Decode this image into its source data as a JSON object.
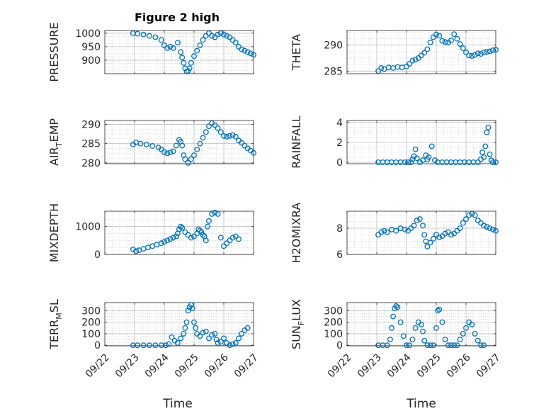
{
  "figure": {
    "title": "Figure 2 high",
    "xlabel": "Time"
  },
  "colors": {
    "marker": "#0072BD",
    "axes": "#262626",
    "grid": "#c8c8c8"
  },
  "chart_data": [
    {
      "type": "scatter",
      "ylabel": "PRESSURE",
      "xlim": [
        "09/22",
        "09/27"
      ],
      "ylim": [
        850,
        1010
      ],
      "yticks": [
        900,
        950,
        1000
      ],
      "grid": true,
      "x": [
        0.95,
        1.1,
        1.3,
        1.5,
        1.7,
        1.9,
        2.0,
        2.1,
        2.2,
        2.3,
        2.45,
        2.55,
        2.6,
        2.65,
        2.7,
        2.75,
        2.8,
        2.85,
        2.9,
        3.0,
        3.1,
        3.2,
        3.3,
        3.4,
        3.5,
        3.6,
        3.7,
        3.8,
        3.9,
        4.0,
        4.1,
        4.2,
        4.3,
        4.4,
        4.5,
        4.6,
        4.7,
        4.8,
        4.9,
        5.0
      ],
      "y": [
        1000,
        998,
        995,
        990,
        985,
        975,
        955,
        945,
        950,
        945,
        965,
        930,
        910,
        890,
        870,
        858,
        860,
        870,
        890,
        915,
        935,
        955,
        975,
        990,
        1000,
        990,
        985,
        995,
        1000,
        995,
        990,
        985,
        975,
        965,
        950,
        940,
        935,
        930,
        925,
        920
      ]
    },
    {
      "type": "scatter",
      "ylabel": "THETA",
      "xlim": [
        "09/22",
        "09/27"
      ],
      "ylim": [
        284.5,
        292.8
      ],
      "yticks": [
        285,
        290
      ],
      "grid": true,
      "x": [
        1.05,
        1.15,
        1.25,
        1.4,
        1.55,
        1.7,
        1.85,
        2.0,
        2.1,
        2.2,
        2.3,
        2.4,
        2.5,
        2.6,
        2.7,
        2.8,
        2.9,
        3.0,
        3.1,
        3.2,
        3.3,
        3.4,
        3.5,
        3.6,
        3.7,
        3.8,
        3.9,
        4.0,
        4.1,
        4.2,
        4.3,
        4.4,
        4.5,
        4.6,
        4.7,
        4.8,
        4.9,
        5.0
      ],
      "y": [
        285.0,
        285.6,
        285.4,
        285.7,
        285.6,
        285.8,
        285.7,
        285.9,
        286.4,
        287.0,
        287.2,
        287.5,
        288.0,
        288.5,
        289.2,
        290.5,
        291.5,
        292.0,
        291.8,
        290.8,
        290.6,
        290.5,
        290.9,
        292.1,
        291.2,
        290.2,
        289.4,
        288.6,
        288.0,
        287.9,
        288.1,
        288.4,
        288.3,
        288.6,
        288.7,
        288.8,
        289.0,
        289.1
      ]
    },
    {
      "type": "scatter",
      "ylabel": "AIR_TEMP",
      "xlim": [
        "09/22",
        "09/27"
      ],
      "ylim": [
        279.8,
        291
      ],
      "yticks": [
        280,
        285,
        290
      ],
      "grid": true,
      "x": [
        0.95,
        1.05,
        1.2,
        1.4,
        1.6,
        1.8,
        1.9,
        2.0,
        2.1,
        2.2,
        2.3,
        2.4,
        2.5,
        2.55,
        2.6,
        2.65,
        2.7,
        2.8,
        2.9,
        3.0,
        3.1,
        3.2,
        3.3,
        3.4,
        3.5,
        3.6,
        3.7,
        3.8,
        3.9,
        4.0,
        4.1,
        4.2,
        4.3,
        4.4,
        4.5,
        4.6,
        4.7,
        4.8,
        4.9,
        5.0
      ],
      "y": [
        284.8,
        285.3,
        285.0,
        284.8,
        284.4,
        284.0,
        283.5,
        282.8,
        282.5,
        282.7,
        283.0,
        284.5,
        286.0,
        285.5,
        284.5,
        282.0,
        281.0,
        280.0,
        281.0,
        282.0,
        283.5,
        285.0,
        286.5,
        288.0,
        289.5,
        290.3,
        289.8,
        289.0,
        288.0,
        287.0,
        286.8,
        287.0,
        287.2,
        286.8,
        285.8,
        285.2,
        284.5,
        283.8,
        283.2,
        282.6
      ]
    },
    {
      "type": "scatter",
      "ylabel": "RAINFALL",
      "xlim": [
        "09/22",
        "09/27"
      ],
      "ylim": [
        -0.15,
        4.2
      ],
      "yticks": [
        0,
        2,
        4
      ],
      "grid": true,
      "x": [
        1.05,
        1.2,
        1.35,
        1.5,
        1.65,
        1.8,
        1.95,
        2.05,
        2.15,
        2.2,
        2.25,
        2.3,
        2.35,
        2.45,
        2.55,
        2.65,
        2.7,
        2.75,
        2.85,
        2.95,
        3.05,
        3.2,
        3.35,
        3.5,
        3.65,
        3.8,
        3.95,
        4.1,
        4.25,
        4.4,
        4.5,
        4.55,
        4.6,
        4.65,
        4.7,
        4.75,
        4.8,
        4.85,
        4.9,
        5.0
      ],
      "y": [
        0,
        0,
        0,
        0,
        0,
        0,
        0,
        0,
        0,
        0.3,
        0.6,
        1.3,
        0.4,
        0,
        0.2,
        0.7,
        0.3,
        0.5,
        1.6,
        0.2,
        0,
        0,
        0,
        0,
        0,
        0,
        0,
        0,
        0,
        0,
        0.3,
        1.0,
        0.5,
        1.6,
        3.0,
        3.5,
        0.8,
        0.2,
        0,
        0
      ]
    },
    {
      "type": "scatter",
      "ylabel": "MIXDEPTH",
      "xlim": [
        "09/22",
        "09/27"
      ],
      "ylim": [
        0,
        1550
      ],
      "yticks": [
        0,
        1000
      ],
      "grid": true,
      "x": [
        0.95,
        1.05,
        1.15,
        1.3,
        1.45,
        1.6,
        1.75,
        1.9,
        2.0,
        2.1,
        2.2,
        2.3,
        2.4,
        2.45,
        2.5,
        2.55,
        2.6,
        2.7,
        2.8,
        2.9,
        3.0,
        3.1,
        3.15,
        3.2,
        3.25,
        3.3,
        3.35,
        3.4,
        3.45,
        3.5,
        3.6,
        3.7,
        3.8,
        3.9,
        4.0,
        4.1,
        4.2,
        4.3,
        4.4,
        4.5
      ],
      "y": [
        180,
        120,
        150,
        200,
        250,
        300,
        350,
        400,
        450,
        500,
        550,
        600,
        650,
        750,
        900,
        1000,
        950,
        800,
        700,
        600,
        650,
        750,
        900,
        850,
        800,
        700,
        650,
        500,
        1000,
        1200,
        1450,
        1500,
        1450,
        600,
        300,
        400,
        500,
        600,
        650,
        550
      ]
    },
    {
      "type": "scatter",
      "ylabel": "H2OMIXRA",
      "xlim": [
        "09/22",
        "09/27"
      ],
      "ylim": [
        6,
        9.3
      ],
      "yticks": [
        6,
        8
      ],
      "grid": true,
      "x": [
        1.05,
        1.15,
        1.25,
        1.35,
        1.5,
        1.65,
        1.8,
        1.95,
        2.05,
        2.15,
        2.25,
        2.35,
        2.45,
        2.55,
        2.6,
        2.65,
        2.7,
        2.8,
        2.9,
        3.0,
        3.1,
        3.2,
        3.3,
        3.4,
        3.5,
        3.6,
        3.7,
        3.8,
        3.9,
        4.0,
        4.1,
        4.2,
        4.3,
        4.4,
        4.5,
        4.6,
        4.7,
        4.8,
        4.9,
        5.0
      ],
      "y": [
        7.5,
        7.7,
        7.8,
        7.7,
        7.9,
        7.8,
        8.0,
        7.9,
        7.8,
        8.0,
        8.2,
        8.6,
        8.7,
        8.2,
        7.5,
        7.0,
        6.6,
        6.9,
        7.2,
        7.5,
        7.3,
        7.4,
        7.6,
        7.7,
        7.5,
        7.6,
        7.8,
        8.0,
        8.4,
        8.7,
        9.0,
        9.1,
        9.0,
        8.6,
        8.4,
        8.2,
        8.1,
        8.0,
        7.9,
        7.8
      ]
    },
    {
      "type": "scatter",
      "ylabel": "TERR_MSL",
      "xlim": [
        "09/22",
        "09/27"
      ],
      "ylim": [
        -5,
        370
      ],
      "yticks": [
        0,
        100,
        200,
        300
      ],
      "grid": true,
      "x": [
        0.95,
        1.1,
        1.3,
        1.5,
        1.7,
        1.9,
        2.05,
        2.15,
        2.25,
        2.35,
        2.45,
        2.55,
        2.65,
        2.7,
        2.75,
        2.8,
        2.85,
        2.9,
        2.95,
        3.0,
        3.05,
        3.1,
        3.2,
        3.3,
        3.4,
        3.5,
        3.6,
        3.7,
        3.75,
        3.8,
        3.9,
        4.0,
        4.1,
        4.2,
        4.3,
        4.4,
        4.5,
        4.6,
        4.7,
        4.8
      ],
      "y": [
        0,
        0,
        0,
        0,
        0,
        0,
        0,
        10,
        70,
        40,
        20,
        60,
        100,
        150,
        200,
        300,
        330,
        350,
        320,
        200,
        150,
        100,
        80,
        110,
        120,
        60,
        90,
        100,
        50,
        20,
        30,
        60,
        20,
        0,
        10,
        20,
        60,
        100,
        130,
        150
      ]
    },
    {
      "type": "scatter",
      "ylabel": "SUN_FLUX",
      "xlim": [
        "09/22",
        "09/27"
      ],
      "ylim": [
        -5,
        370
      ],
      "yticks": [
        0,
        100,
        200,
        300
      ],
      "grid": true,
      "x": [
        1.05,
        1.2,
        1.35,
        1.45,
        1.5,
        1.55,
        1.6,
        1.65,
        1.7,
        1.8,
        1.9,
        2.0,
        2.1,
        2.2,
        2.3,
        2.4,
        2.5,
        2.55,
        2.6,
        2.7,
        2.8,
        2.9,
        3.0,
        3.05,
        3.1,
        3.2,
        3.3,
        3.4,
        3.5,
        3.6,
        3.7,
        3.8,
        3.9,
        4.0,
        4.1,
        4.2,
        4.3,
        4.4,
        4.5,
        4.6
      ],
      "y": [
        0,
        0,
        0,
        50,
        150,
        250,
        320,
        340,
        330,
        200,
        80,
        0,
        0,
        50,
        150,
        200,
        180,
        120,
        40,
        0,
        0,
        0,
        150,
        300,
        310,
        200,
        50,
        0,
        0,
        0,
        0,
        50,
        100,
        150,
        200,
        180,
        100,
        40,
        0,
        0
      ]
    }
  ],
  "x_ticks": [
    "09/22",
    "09/23",
    "09/24",
    "09/25",
    "09/26",
    "09/27"
  ]
}
